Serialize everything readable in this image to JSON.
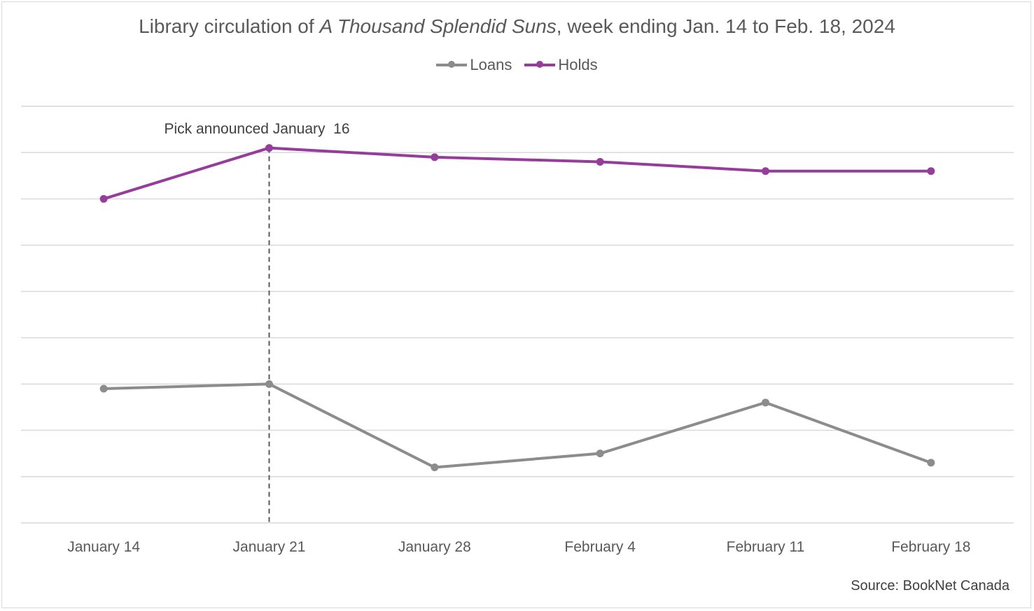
{
  "title": {
    "prefix": "Library circulation of ",
    "book": "A Thousand Splendid Suns",
    "suffix": ", week ending Jan. 14 to Feb. 18, 2024"
  },
  "source": "Source: BookNet Canada",
  "colors": {
    "loans": "#8c8c8c",
    "holds": "#963c9a",
    "grid": "#d9d9d9",
    "annotation": "#595959"
  },
  "chart_data": {
    "type": "line",
    "title": "Library circulation of A Thousand Splendid Suns, week ending Jan. 14 to Feb. 18, 2024",
    "categories": [
      "January 14",
      "January 21",
      "January 28",
      "February 4",
      "February 11",
      "February 18"
    ],
    "series": [
      {
        "name": "Loans",
        "values": [
          2.9,
          3.0,
          1.2,
          1.5,
          2.6,
          1.3
        ]
      },
      {
        "name": "Holds",
        "values": [
          7.0,
          8.1,
          7.9,
          7.8,
          7.6,
          7.6
        ]
      }
    ],
    "ylim": [
      0,
      9
    ],
    "y_axis_labels": "none",
    "grid": true,
    "legend": "top-center",
    "annotation": {
      "text": "Pick announced January  16",
      "category": "January 21",
      "style": "dashed-vertical-line"
    }
  }
}
